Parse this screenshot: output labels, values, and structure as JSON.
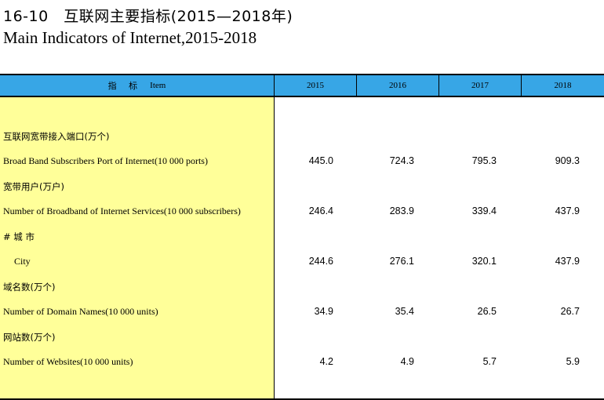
{
  "title": {
    "cn": "16-10　互联网主要指标(2015—2018年)",
    "en": "Main Indicators of Internet,2015-2018"
  },
  "header": {
    "item_cn": "指 标",
    "item_en": "Item",
    "years": [
      "2015",
      "2016",
      "2017",
      "2018"
    ]
  },
  "rows": [
    {
      "cn": "互联网宽带接入端口(万个)",
      "en": "Broad Band Subscribers Port of Internet(10 000 ports)",
      "values": [
        "445.0",
        "724.3",
        "795.3",
        "909.3"
      ]
    },
    {
      "cn": "宽带用户(万户)",
      "en": "Number of Broadband of Internet Services(10 000 subscribers)",
      "values": [
        "246.4",
        "283.9",
        "339.4",
        "437.9"
      ]
    },
    {
      "cn": "# 城 市",
      "en": "City",
      "values": [
        "244.6",
        "276.1",
        "320.1",
        "437.9"
      ]
    },
    {
      "cn": "域名数(万个)",
      "en": "Number of Domain Names(10 000 units)",
      "values": [
        "34.9",
        "35.4",
        "26.5",
        "26.7"
      ]
    },
    {
      "cn": "网站数(万个)",
      "en": "Number of Websites(10 000 units)",
      "values": [
        "4.2",
        "4.9",
        "5.7",
        "5.9"
      ]
    }
  ]
}
